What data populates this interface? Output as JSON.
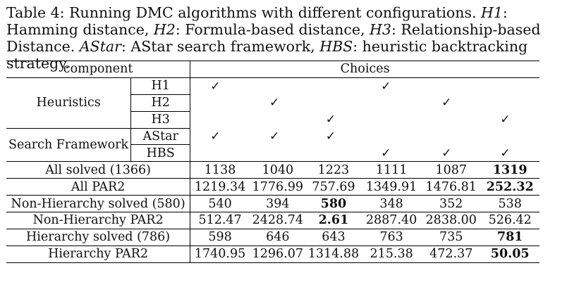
{
  "caption": {
    "table_num": "Table 4:",
    "text": "Running DMC algorithms with different configurations.",
    "h1": "H1",
    "h1_desc": "Hamming distance,",
    "h2": "H2",
    "h2_desc": "Formula-based distance,",
    "h3": "H3",
    "h3_desc": "Relationship-based Distance.",
    "astar": "AStar",
    "astar_desc": "AStar search framework,",
    "hbs": "HBS",
    "hbs_desc": "heuristic backtracking strategy."
  },
  "table": {
    "header": {
      "component": "component",
      "choices": "Choices"
    },
    "check_symbol": "✓",
    "heuristics_label": "Heuristics",
    "search_label": "Search Framework",
    "config_rows": [
      {
        "label": "H1",
        "checks": [
          true,
          false,
          false,
          true,
          false,
          false
        ]
      },
      {
        "label": "H2",
        "checks": [
          false,
          true,
          false,
          false,
          true,
          false
        ]
      },
      {
        "label": "H3",
        "checks": [
          false,
          false,
          true,
          false,
          false,
          true
        ]
      },
      {
        "label": "AStar",
        "checks": [
          true,
          true,
          true,
          false,
          false,
          false
        ]
      },
      {
        "label": "HBS",
        "checks": [
          false,
          false,
          false,
          true,
          true,
          true
        ]
      }
    ],
    "result_rows": [
      {
        "label": "All solved (1366)",
        "values": [
          "1138",
          "1040",
          "1223",
          "1111",
          "1087",
          "1319"
        ],
        "bold": [
          5
        ]
      },
      {
        "label": "All PAR2",
        "values": [
          "1219.34",
          "1776.99",
          "757.69",
          "1349.91",
          "1476.81",
          "252.32"
        ],
        "bold": [
          5
        ]
      },
      {
        "label": "Non-Hierarchy solved (580)",
        "values": [
          "540",
          "394",
          "580",
          "348",
          "352",
          "538"
        ],
        "bold": [
          2
        ]
      },
      {
        "label": "Non-Hierarchy PAR2",
        "values": [
          "512.47",
          "2428.74",
          "2.61",
          "2887.40",
          "2838.00",
          "526.42"
        ],
        "bold": [
          2
        ]
      },
      {
        "label": "Hierarchy solved (786)",
        "values": [
          "598",
          "646",
          "643",
          "763",
          "735",
          "781"
        ],
        "bold": [
          5
        ]
      },
      {
        "label": "Hierarchy PAR2",
        "values": [
          "1740.95",
          "1296.07",
          "1314.88",
          "215.38",
          "472.37",
          "50.05"
        ],
        "bold": [
          5
        ]
      }
    ]
  }
}
